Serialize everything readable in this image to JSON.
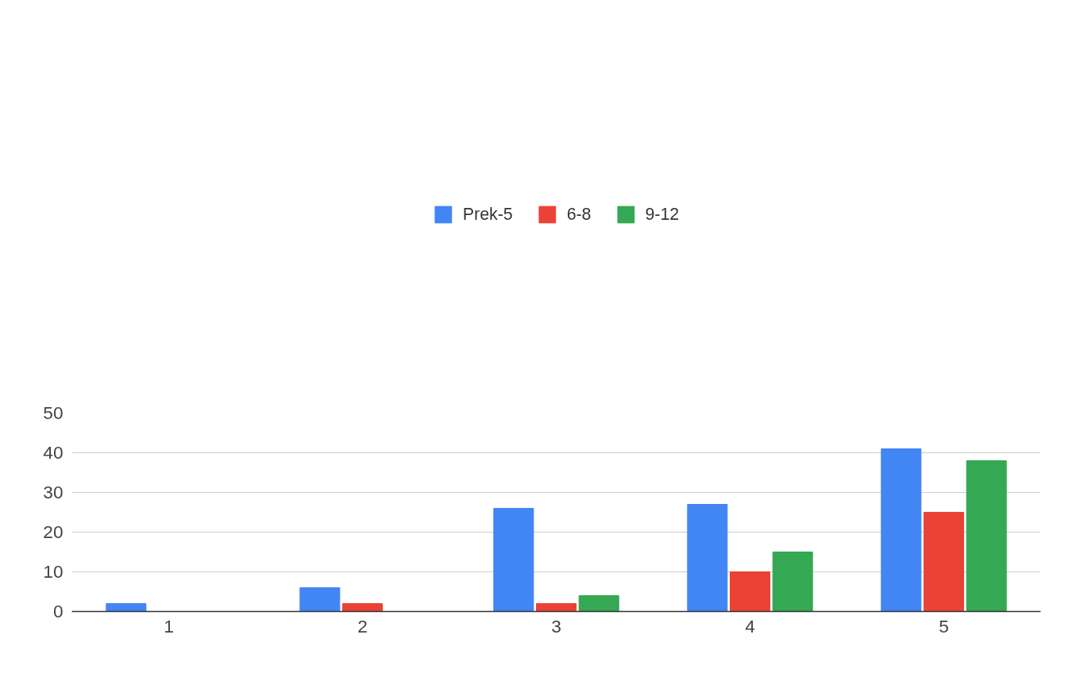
{
  "chart_data": {
    "type": "bar",
    "categories": [
      "1",
      "2",
      "3",
      "4",
      "5"
    ],
    "series": [
      {
        "name": "Prek-5",
        "color": "#4285f4",
        "values": [
          2,
          6,
          26,
          27,
          41
        ]
      },
      {
        "name": "6-8",
        "color": "#ea4335",
        "values": [
          0,
          2,
          2,
          10,
          25
        ]
      },
      {
        "name": "9-12",
        "color": "#34a853",
        "values": [
          0,
          0,
          4,
          15,
          38
        ]
      }
    ],
    "ylim": [
      0,
      50
    ],
    "yticks": [
      0,
      10,
      20,
      30,
      40,
      50
    ],
    "grid": "y",
    "legend": "top"
  }
}
